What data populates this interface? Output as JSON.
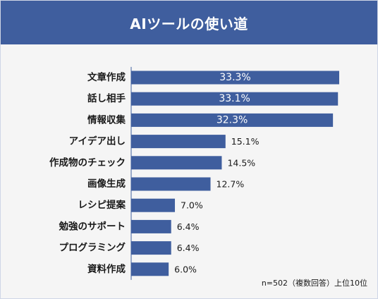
{
  "header": {
    "title": "AIツールの使い道"
  },
  "note": "n=502（複数回答）上位10位",
  "colors": {
    "header_bg": "#3f5e9e",
    "bar": "#3f5e9e",
    "background": "#f5f5f5"
  },
  "chart_data": {
    "type": "bar",
    "orientation": "horizontal",
    "categories": [
      "文章作成",
      "話し相手",
      "情報収集",
      "アイデア出し",
      "作成物のチェック",
      "画像生成",
      "レシピ提案",
      "勉強のサポート",
      "プログラミング",
      "資料作成"
    ],
    "values": [
      33.3,
      33.1,
      32.3,
      15.1,
      14.5,
      12.7,
      7.0,
      6.4,
      6.4,
      6.0
    ],
    "value_labels": [
      "33.3%",
      "33.1%",
      "32.3%",
      "15.1%",
      "14.5%",
      "12.7%",
      "7.0%",
      "6.4%",
      "6.4%",
      "6.0%"
    ],
    "title": "AIツールの使い道",
    "xlabel": "",
    "ylabel": "",
    "xlim": [
      0,
      33.3
    ],
    "grid": false,
    "legend": "none"
  }
}
